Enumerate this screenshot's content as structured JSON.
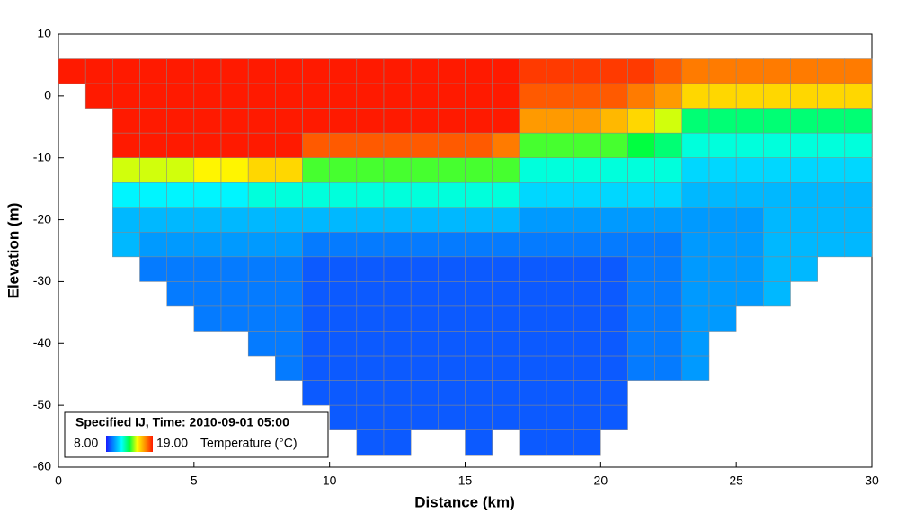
{
  "chart_data": {
    "type": "heatmap",
    "xlabel": "Distance (km)",
    "ylabel": "Elevation (m)",
    "xlim": [
      0,
      30
    ],
    "xticks": [
      0,
      5,
      10,
      15,
      20,
      25,
      30
    ],
    "ylim": [
      -60,
      10
    ],
    "yticks": [
      -60,
      -50,
      -40,
      -30,
      -20,
      -10,
      0,
      10
    ],
    "x": [
      0.5,
      1.5,
      2.5,
      3.5,
      4.5,
      5.5,
      6.5,
      7.5,
      8.5,
      9.5,
      10.5,
      11.5,
      12.5,
      13.5,
      14.5,
      15.5,
      16.5,
      17.5,
      18.5,
      19.5,
      20.5,
      21.5,
      22.5,
      23.5,
      24.5,
      25.5,
      26.5,
      27.5,
      28.5,
      29.5
    ],
    "y": [
      4,
      0,
      -4,
      -8,
      -12,
      -16,
      -20,
      -24,
      -28,
      -32,
      -36,
      -40,
      -44,
      -48,
      -52,
      -56
    ],
    "values": [
      [
        19,
        null,
        null,
        null,
        null,
        null,
        null,
        null,
        null,
        null,
        null,
        null,
        null,
        null,
        null,
        null
      ],
      [
        19,
        19,
        null,
        null,
        null,
        null,
        null,
        null,
        null,
        null,
        null,
        null,
        null,
        null,
        null,
        null
      ],
      [
        19,
        19,
        19,
        19,
        15,
        11.5,
        10.5,
        10.5,
        null,
        null,
        null,
        null,
        null,
        null,
        null,
        null
      ],
      [
        19,
        19,
        19,
        19,
        15,
        11.5,
        10.5,
        10,
        9.5,
        null,
        null,
        null,
        null,
        null,
        null,
        null
      ],
      [
        19,
        19,
        19,
        19,
        15,
        11.5,
        10.5,
        10,
        9.5,
        9.5,
        null,
        null,
        null,
        null,
        null,
        null
      ],
      [
        19,
        19,
        19,
        19,
        15.5,
        11.5,
        10.5,
        10,
        9.5,
        9.5,
        9.5,
        null,
        null,
        null,
        null,
        null
      ],
      [
        19,
        19,
        19,
        19,
        15.5,
        11.5,
        10.5,
        10,
        9.5,
        9.5,
        9.5,
        null,
        null,
        null,
        null,
        null
      ],
      [
        19,
        19,
        19,
        19,
        16,
        12,
        10.5,
        10,
        9.5,
        9.5,
        9.5,
        9.5,
        null,
        null,
        null,
        null
      ],
      [
        19,
        19,
        19,
        19,
        16,
        12,
        10.5,
        10,
        9.5,
        9.5,
        9.5,
        9.5,
        9.5,
        null,
        null,
        null
      ],
      [
        19,
        19,
        19,
        18,
        14,
        12,
        10.5,
        9.5,
        9,
        9,
        9,
        9,
        9,
        9,
        null,
        null
      ],
      [
        19,
        19,
        19,
        18,
        14,
        12,
        10.5,
        9.5,
        9,
        9,
        9,
        9,
        9,
        9,
        9,
        null
      ],
      [
        19,
        19,
        19,
        18,
        14,
        12,
        10.5,
        9.5,
        9,
        9,
        9,
        9,
        9,
        9,
        9,
        9
      ],
      [
        19,
        19,
        19,
        18,
        14,
        12,
        10.5,
        9.5,
        9,
        9,
        9,
        9,
        9,
        9,
        9,
        9
      ],
      [
        19,
        19,
        19,
        18,
        14,
        12,
        10.5,
        9.5,
        9,
        9,
        9,
        9,
        9,
        9,
        9,
        null
      ],
      [
        19,
        19,
        19,
        18,
        14,
        12,
        10.5,
        9.5,
        9,
        9,
        9,
        9,
        9,
        9,
        9,
        null
      ],
      [
        19,
        19,
        19,
        18,
        14,
        12,
        10.5,
        9.5,
        9,
        9,
        9,
        9,
        9,
        9,
        9,
        9
      ],
      [
        19,
        19,
        19,
        17.5,
        14,
        12,
        10.5,
        9.5,
        9,
        9,
        9,
        9,
        9,
        9,
        9,
        null
      ],
      [
        18.5,
        18,
        17,
        14,
        12,
        11,
        10,
        9.5,
        9,
        9,
        9,
        9,
        9,
        9,
        9,
        9
      ],
      [
        18.5,
        18,
        17,
        14,
        12,
        11,
        10,
        9.5,
        9,
        9,
        9,
        9,
        9,
        9,
        9,
        9
      ],
      [
        18.5,
        18,
        17,
        14,
        12,
        11,
        10,
        9.5,
        9,
        9,
        9,
        9,
        9,
        9,
        9,
        9
      ],
      [
        18.5,
        18,
        16.5,
        14,
        12,
        11,
        10,
        9.5,
        9,
        9,
        9,
        9,
        9,
        9,
        9,
        null
      ],
      [
        18.5,
        17.5,
        16,
        13.5,
        12,
        11,
        10,
        9.5,
        9.5,
        9.5,
        9.5,
        9.5,
        9.5,
        null,
        null,
        null
      ],
      [
        18,
        17,
        15,
        13,
        12,
        11,
        10,
        9.5,
        9.5,
        9.5,
        9.5,
        9.5,
        9.5,
        null,
        null,
        null
      ],
      [
        17.5,
        16,
        13,
        12,
        11,
        10.5,
        10,
        10,
        10,
        10,
        10,
        10,
        10,
        null,
        null,
        null
      ],
      [
        17.5,
        16,
        13,
        12,
        11,
        10.5,
        10,
        10,
        10,
        10,
        10,
        null,
        null,
        null,
        null,
        null
      ],
      [
        17.5,
        16,
        13,
        12,
        11,
        10.5,
        10,
        10,
        10,
        10,
        null,
        null,
        null,
        null,
        null,
        null
      ],
      [
        17.5,
        16,
        13,
        12,
        11,
        10.5,
        10.5,
        10.5,
        10.5,
        10.5,
        null,
        null,
        null,
        null,
        null,
        null
      ],
      [
        17.5,
        16,
        13,
        12,
        11,
        10.5,
        10.5,
        10.5,
        10.5,
        null,
        null,
        null,
        null,
        null,
        null,
        null
      ],
      [
        17.5,
        16,
        13,
        12,
        11,
        10.5,
        10.5,
        10.5,
        null,
        null,
        null,
        null,
        null,
        null,
        null,
        null
      ],
      [
        17.5,
        16,
        13,
        12,
        11,
        10.5,
        10.5,
        10.5,
        null,
        null,
        null,
        null,
        null,
        null,
        null,
        null
      ]
    ],
    "colors": [
      "#1a1aff",
      "#0090ff",
      "#00ffff",
      "#00ff40",
      "#ffff00",
      "#ff9000",
      "#ff1a00"
    ],
    "legend_title": "Specified IJ, Time: 2010-09-01 05:00",
    "clim": [
      {
        "value": 8,
        "label": "8.00"
      },
      {
        "value": 19,
        "label": "19.00"
      }
    ],
    "colorbar_label": "Temperature (°C)"
  }
}
